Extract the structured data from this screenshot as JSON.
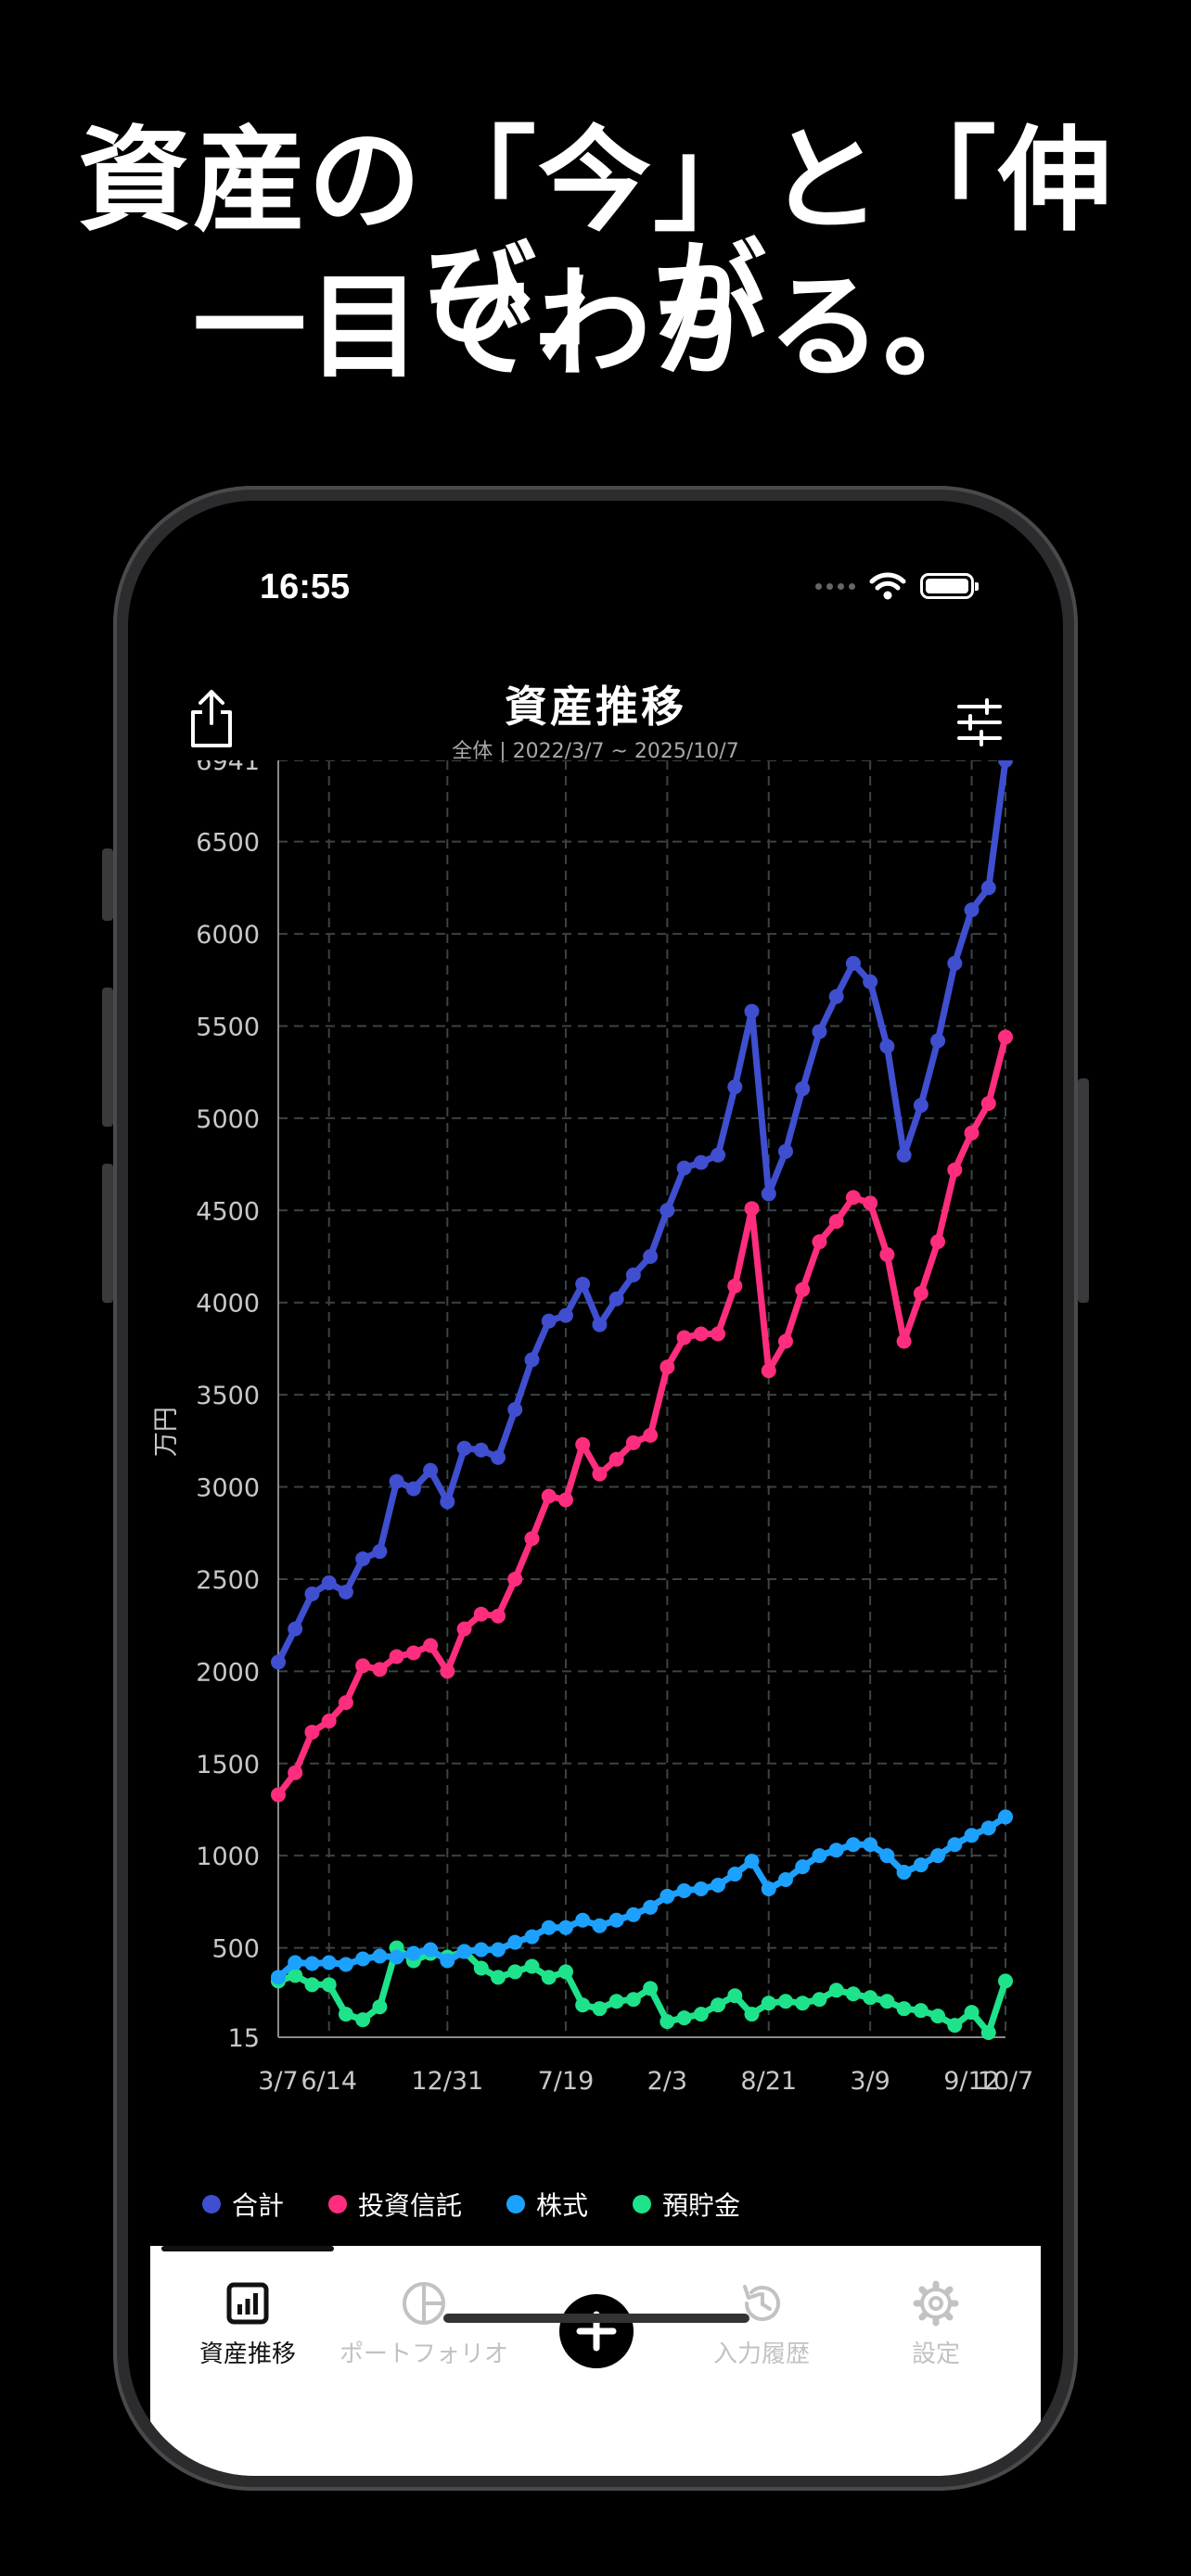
{
  "headline": {
    "line1": "資産の「今」と「伸び」が",
    "line2": "一目でわかる。"
  },
  "status": {
    "time": "16:55"
  },
  "nav": {
    "title": "資産推移",
    "subtitle": "全体 | 2022/3/7 ~ 2025/10/7"
  },
  "tabs": [
    {
      "label": "資産推移",
      "icon": "chart-icon",
      "active": true
    },
    {
      "label": "ポートフォリオ",
      "icon": "pie-icon",
      "active": false
    },
    {
      "label": "",
      "icon": "add-icon",
      "active": false
    },
    {
      "label": "入力履歴",
      "icon": "history-icon",
      "active": false
    },
    {
      "label": "設定",
      "icon": "gear-icon",
      "active": false
    }
  ],
  "chart_data": {
    "type": "line",
    "ylabel": "万円",
    "ylim": [
      15,
      6941
    ],
    "y_ticks": [
      6941,
      6500,
      6000,
      5500,
      5000,
      4500,
      4000,
      3500,
      3000,
      2500,
      2000,
      1500,
      1000,
      500,
      15
    ],
    "x_ticks": [
      "3/7",
      "6/14",
      "12/31",
      "7/19",
      "2/3",
      "8/21",
      "3/9",
      "9/12",
      "10/7"
    ],
    "grid": true,
    "series": [
      {
        "name": "合計",
        "color": "#3f4fd0",
        "values": [
          2050,
          2230,
          2420,
          2480,
          2430,
          2610,
          2650,
          3030,
          2990,
          3090,
          2920,
          3210,
          3200,
          3160,
          3420,
          3690,
          3900,
          3930,
          4100,
          3880,
          4020,
          4150,
          4250,
          4500,
          4730,
          4760,
          4800,
          5170,
          5580,
          4590,
          4820,
          5160,
          5470,
          5660,
          5840,
          5740,
          5390,
          4800,
          5070,
          5420,
          5840,
          6130,
          6250,
          6941
        ]
      },
      {
        "name": "投資信託",
        "color": "#ff2d7e",
        "values": [
          1330,
          1450,
          1670,
          1730,
          1830,
          2030,
          2010,
          2080,
          2100,
          2140,
          2000,
          2230,
          2310,
          2300,
          2500,
          2720,
          2950,
          2930,
          3230,
          3070,
          3150,
          3240,
          3280,
          3650,
          3810,
          3830,
          3830,
          4090,
          4510,
          3630,
          3790,
          4070,
          4330,
          4440,
          4570,
          4540,
          4260,
          3790,
          4050,
          4330,
          4720,
          4920,
          5080,
          5440
        ]
      },
      {
        "name": "株式",
        "color": "#1da1ff",
        "values": [
          340,
          420,
          415,
          420,
          410,
          440,
          455,
          450,
          470,
          490,
          430,
          480,
          490,
          490,
          530,
          560,
          610,
          610,
          650,
          620,
          650,
          680,
          720,
          780,
          810,
          820,
          840,
          900,
          970,
          820,
          870,
          940,
          1000,
          1030,
          1060,
          1060,
          1000,
          910,
          950,
          1000,
          1060,
          1110,
          1150,
          1210
        ]
      },
      {
        "name": "預貯金",
        "color": "#1ee38a",
        "values": [
          320,
          350,
          300,
          300,
          140,
          110,
          180,
          500,
          430,
          470,
          450,
          480,
          390,
          340,
          370,
          400,
          340,
          370,
          190,
          170,
          210,
          220,
          280,
          100,
          120,
          140,
          190,
          240,
          140,
          200,
          210,
          200,
          220,
          270,
          250,
          230,
          210,
          170,
          160,
          130,
          80,
          150,
          40,
          320
        ]
      }
    ]
  }
}
